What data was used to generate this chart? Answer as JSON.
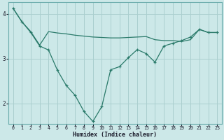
{
  "xlabel": "Humidex (Indice chaleur)",
  "background_color": "#cce8e8",
  "grid_color": "#aacfcf",
  "line_color": "#2a7a6a",
  "xlim": [
    -0.5,
    23.5
  ],
  "ylim": [
    1.55,
    4.25
  ],
  "yticks": [
    2,
    3,
    4
  ],
  "xticks": [
    0,
    1,
    2,
    3,
    4,
    5,
    6,
    7,
    8,
    9,
    10,
    11,
    12,
    13,
    14,
    15,
    16,
    17,
    18,
    19,
    20,
    21,
    22,
    23
  ],
  "line1_x": [
    0,
    1,
    2,
    3,
    4,
    5,
    6,
    7,
    8,
    9,
    10,
    11,
    12,
    13,
    14,
    15,
    16,
    17,
    18,
    19,
    20,
    21,
    22,
    23
  ],
  "line1_y": [
    4.12,
    3.82,
    3.58,
    3.28,
    3.19,
    2.74,
    2.4,
    2.18,
    1.82,
    1.6,
    1.93,
    2.75,
    2.82,
    3.02,
    3.2,
    3.11,
    2.92,
    3.28,
    3.34,
    3.4,
    3.48,
    3.65,
    3.58,
    3.58
  ],
  "line2_x": [
    0,
    1,
    2,
    3,
    4,
    5,
    6,
    7,
    8,
    9,
    10,
    11,
    12,
    13,
    14,
    15,
    16,
    17,
    18,
    19,
    20,
    21,
    22,
    23
  ],
  "line2_y": [
    4.12,
    3.82,
    3.6,
    3.3,
    3.6,
    3.57,
    3.55,
    3.52,
    3.5,
    3.48,
    3.47,
    3.46,
    3.46,
    3.47,
    3.48,
    3.49,
    3.42,
    3.4,
    3.4,
    3.38,
    3.42,
    3.65,
    3.58,
    3.58
  ]
}
